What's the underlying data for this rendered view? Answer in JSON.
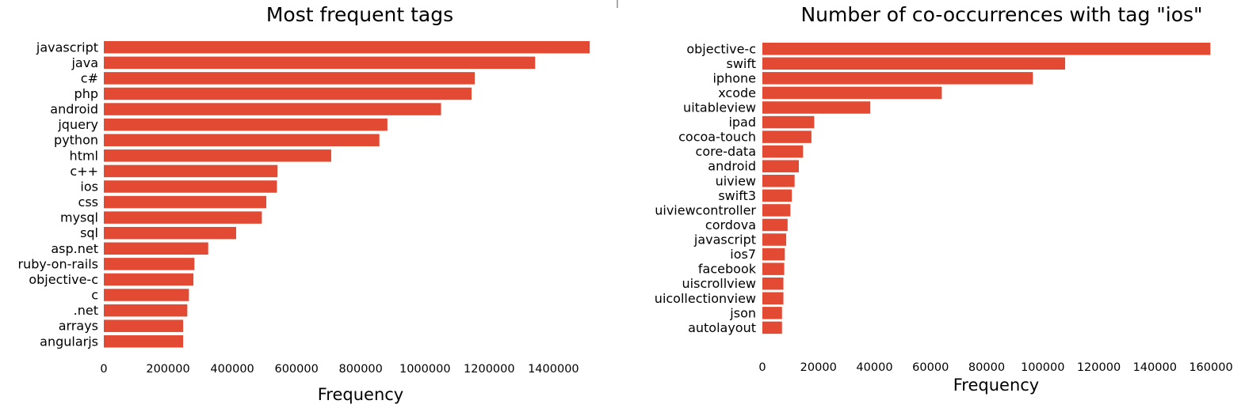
{
  "chart_data": [
    {
      "type": "bar",
      "orientation": "horizontal",
      "title": "Most frequent tags",
      "xlabel": "Frequency",
      "ylabel": "",
      "color": "#e24a33",
      "grid": false,
      "xlim": [
        0,
        1520000
      ],
      "xticks": [
        0,
        200000,
        400000,
        600000,
        800000,
        1000000,
        1200000,
        1400000
      ],
      "categories": [
        "javascript",
        "java",
        "c#",
        "php",
        "android",
        "jquery",
        "python",
        "html",
        "c++",
        "ios",
        "css",
        "mysql",
        "sql",
        "asp.net",
        "ruby-on-rails",
        "objective-c",
        "c",
        ".net",
        "arrays",
        "angularjs"
      ],
      "values": [
        1513000,
        1343000,
        1155000,
        1145000,
        1050000,
        883000,
        858000,
        708000,
        541000,
        539000,
        506000,
        492000,
        412000,
        325000,
        282000,
        279000,
        265000,
        260000,
        247000,
        247000
      ]
    },
    {
      "type": "bar",
      "orientation": "horizontal",
      "title": "Number of co-occurrences with tag \"ios\"",
      "xlabel": "Frequency",
      "ylabel": "",
      "color": "#e24a33",
      "grid": false,
      "xlim": [
        0,
        160000
      ],
      "xticks": [
        0,
        20000,
        40000,
        60000,
        80000,
        100000,
        120000,
        140000,
        160000
      ],
      "categories": [
        "objective-c",
        "swift",
        "iphone",
        "xcode",
        "uitableview",
        "ipad",
        "cocoa-touch",
        "core-data",
        "android",
        "uiview",
        "swift3",
        "uiviewcontroller",
        "cordova",
        "javascript",
        "ios7",
        "facebook",
        "uiscrollview",
        "uicollectionview",
        "json",
        "autolayout"
      ],
      "values": [
        159800,
        108000,
        96500,
        64000,
        38500,
        18500,
        17500,
        14500,
        13000,
        11500,
        10500,
        10000,
        9000,
        8500,
        8000,
        7800,
        7500,
        7500,
        7000,
        7000
      ]
    }
  ]
}
